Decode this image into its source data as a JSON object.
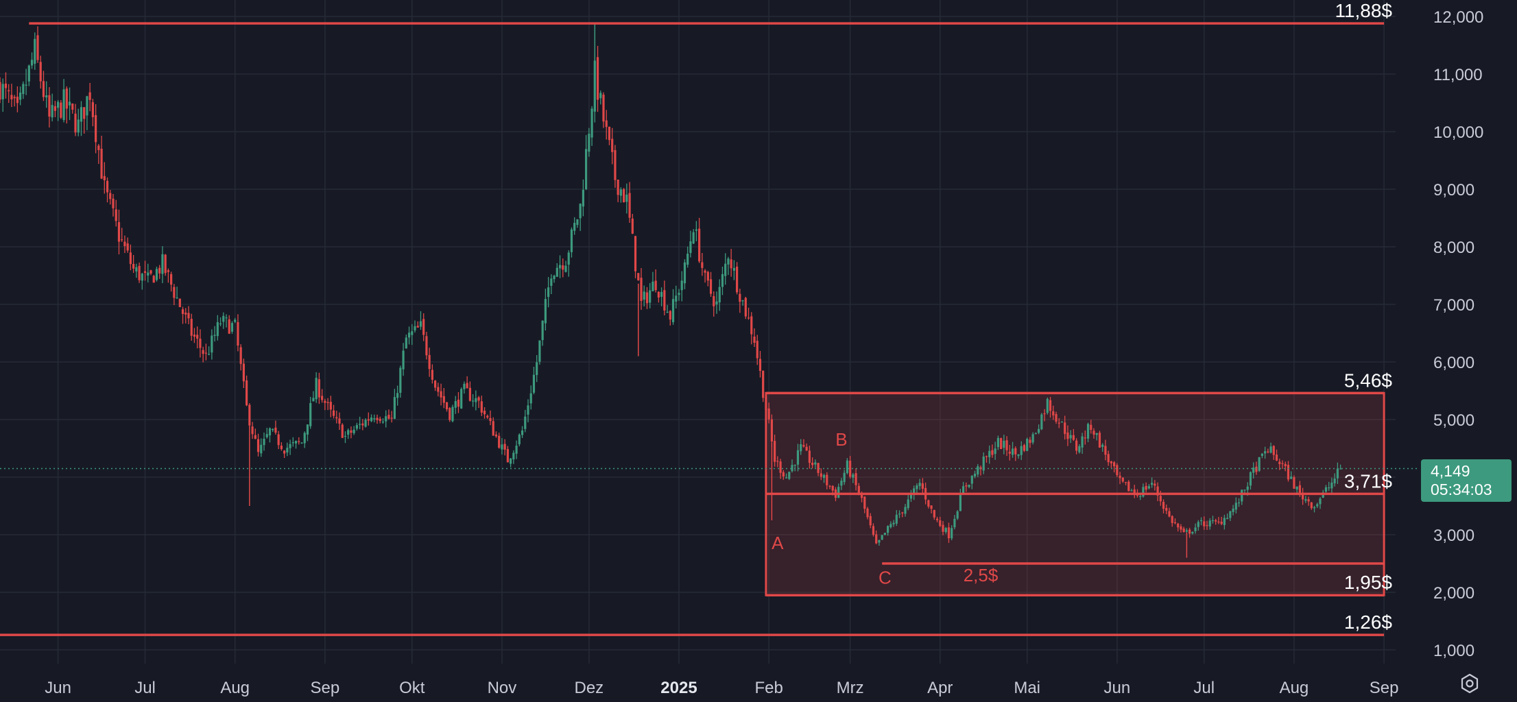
{
  "chart_data": {
    "type": "candlestick",
    "y_ticks": [
      1000,
      2000,
      3000,
      4000,
      5000,
      6000,
      7000,
      8000,
      9000,
      10000,
      11000,
      12000
    ],
    "y_tick_labels": [
      "1,000",
      "2,000",
      "3,000",
      "4,000",
      "5,000",
      "6,000",
      "7,000",
      "8,000",
      "9,000",
      "10,000",
      "11,000",
      "12,000"
    ],
    "ylim": [
      500,
      12400
    ],
    "x_range": [
      "2024-05-12",
      "2025-09-05"
    ],
    "x_ticks": [
      {
        "date": "2024-06-01",
        "label": "Jun"
      },
      {
        "date": "2024-07-01",
        "label": "Jul"
      },
      {
        "date": "2024-08-01",
        "label": "Aug"
      },
      {
        "date": "2024-09-01",
        "label": "Sep"
      },
      {
        "date": "2024-10-01",
        "label": "Okt"
      },
      {
        "date": "2024-11-01",
        "label": "Nov"
      },
      {
        "date": "2024-12-01",
        "label": "Dez"
      },
      {
        "date": "2025-01-01",
        "label": "2025",
        "bold": true
      },
      {
        "date": "2025-02-01",
        "label": "Feb"
      },
      {
        "date": "2025-03-01",
        "label": "Mrz"
      },
      {
        "date": "2025-04-01",
        "label": "Apr"
      },
      {
        "date": "2025-05-01",
        "label": "Mai"
      },
      {
        "date": "2025-06-01",
        "label": "Jun"
      },
      {
        "date": "2025-07-01",
        "label": "Jul"
      },
      {
        "date": "2025-08-01",
        "label": "Aug"
      },
      {
        "date": "2025-09-01",
        "label": "Sep"
      }
    ],
    "price_path": [
      [
        "2024-05-12",
        10800
      ],
      [
        "2024-05-18",
        10300
      ],
      [
        "2024-05-24",
        11400
      ],
      [
        "2024-05-29",
        10200
      ],
      [
        "2024-06-03",
        10500
      ],
      [
        "2024-06-08",
        10100
      ],
      [
        "2024-06-12",
        10700
      ],
      [
        "2024-06-17",
        9000
      ],
      [
        "2024-06-22",
        8200
      ],
      [
        "2024-06-27",
        7600
      ],
      [
        "2024-07-02",
        7400
      ],
      [
        "2024-07-07",
        7700
      ],
      [
        "2024-07-12",
        7100
      ],
      [
        "2024-07-17",
        6500
      ],
      [
        "2024-07-22",
        6100
      ],
      [
        "2024-07-27",
        6700
      ],
      [
        "2024-08-01",
        6600
      ],
      [
        "2024-08-05",
        5200
      ],
      [
        "2024-08-09",
        4400
      ],
      [
        "2024-08-13",
        4800
      ],
      [
        "2024-08-18",
        4500
      ],
      [
        "2024-08-24",
        4600
      ],
      [
        "2024-08-29",
        5600
      ],
      [
        "2024-09-03",
        5100
      ],
      [
        "2024-09-08",
        4700
      ],
      [
        "2024-09-13",
        4900
      ],
      [
        "2024-09-18",
        5100
      ],
      [
        "2024-09-24",
        5000
      ],
      [
        "2024-09-29",
        6400
      ],
      [
        "2024-10-04",
        6600
      ],
      [
        "2024-10-09",
        5600
      ],
      [
        "2024-10-14",
        5100
      ],
      [
        "2024-10-19",
        5500
      ],
      [
        "2024-10-24",
        5300
      ],
      [
        "2024-10-29",
        4800
      ],
      [
        "2024-11-03",
        4300
      ],
      [
        "2024-11-08",
        4800
      ],
      [
        "2024-11-13",
        6000
      ],
      [
        "2024-11-18",
        7600
      ],
      [
        "2024-11-23",
        7800
      ],
      [
        "2024-11-28",
        8700
      ],
      [
        "2024-12-03",
        11000
      ],
      [
        "2024-12-06",
        10200
      ],
      [
        "2024-12-10",
        9200
      ],
      [
        "2024-12-14",
        8800
      ],
      [
        "2024-12-19",
        7000
      ],
      [
        "2024-12-24",
        7400
      ],
      [
        "2024-12-29",
        6800
      ],
      [
        "2025-01-03",
        7600
      ],
      [
        "2025-01-06",
        8400
      ],
      [
        "2025-01-10",
        7400
      ],
      [
        "2025-01-14",
        7000
      ],
      [
        "2025-01-18",
        7900
      ],
      [
        "2025-01-22",
        7200
      ],
      [
        "2025-01-27",
        6400
      ],
      [
        "2025-01-31",
        5200
      ],
      [
        "2025-02-03",
        4300
      ],
      [
        "2025-02-07",
        4000
      ],
      [
        "2025-02-12",
        4500
      ],
      [
        "2025-02-18",
        4100
      ],
      [
        "2025-02-24",
        3700
      ],
      [
        "2025-02-28",
        4200
      ],
      [
        "2025-03-05",
        3600
      ],
      [
        "2025-03-10",
        2800
      ],
      [
        "2025-03-14",
        3100
      ],
      [
        "2025-03-20",
        3500
      ],
      [
        "2025-03-25",
        3900
      ],
      [
        "2025-03-30",
        3300
      ],
      [
        "2025-04-04",
        3000
      ],
      [
        "2025-04-09",
        3800
      ],
      [
        "2025-04-15",
        4200
      ],
      [
        "2025-04-21",
        4600
      ],
      [
        "2025-04-27",
        4400
      ],
      [
        "2025-05-03",
        4700
      ],
      [
        "2025-05-08",
        5300
      ],
      [
        "2025-05-13",
        4900
      ],
      [
        "2025-05-18",
        4500
      ],
      [
        "2025-05-23",
        4900
      ],
      [
        "2025-05-28",
        4400
      ],
      [
        "2025-06-02",
        3900
      ],
      [
        "2025-06-08",
        3700
      ],
      [
        "2025-06-13",
        3900
      ],
      [
        "2025-06-19",
        3300
      ],
      [
        "2025-06-24",
        3000
      ],
      [
        "2025-06-30",
        3200
      ],
      [
        "2025-07-06",
        3200
      ],
      [
        "2025-07-12",
        3500
      ],
      [
        "2025-07-18",
        4100
      ],
      [
        "2025-07-23",
        4500
      ],
      [
        "2025-07-28",
        4200
      ],
      [
        "2025-08-03",
        3700
      ],
      [
        "2025-08-08",
        3500
      ],
      [
        "2025-08-14",
        3900
      ],
      [
        "2025-08-17",
        4149
      ]
    ],
    "wicks": [
      [
        "2024-08-06",
        3500
      ],
      [
        "2024-12-03",
        11880
      ],
      [
        "2024-12-18",
        6100
      ],
      [
        "2025-02-02",
        3250
      ],
      [
        "2025-06-25",
        2600
      ]
    ],
    "levels": [
      {
        "value": 11.88,
        "label": "11,88$",
        "from": "2024-05-22",
        "to": "2025-09-01"
      },
      {
        "value": 5.46,
        "label": "5,46$"
      },
      {
        "value": 3.71,
        "label": "3,71$"
      },
      {
        "value": 2.5,
        "label": "2,5$",
        "from": "2025-03-12"
      },
      {
        "value": 1.95,
        "label": "1,95$"
      },
      {
        "value": 1.26,
        "label": "1,26$",
        "from": "2024-05-12",
        "to": "2025-09-01"
      }
    ],
    "range_box": {
      "from": "2025-01-31",
      "to": "2025-09-01",
      "top": 5.46,
      "bottom": 1.95
    },
    "wave_labels": [
      {
        "text": "A",
        "date": "2025-02-04",
        "price": 2750
      },
      {
        "text": "B",
        "date": "2025-02-26",
        "price": 4550
      },
      {
        "text": "C",
        "date": "2025-03-13",
        "price": 2150
      }
    ],
    "current_price": {
      "value": 4149,
      "label": "4,149",
      "countdown": "05:34:03"
    },
    "colors": {
      "up": "#3d9a7e",
      "down": "#e04848",
      "level": "#e04848",
      "background": "#171a25",
      "grid": "#262a36",
      "price_line": "#3d9a7e"
    }
  }
}
